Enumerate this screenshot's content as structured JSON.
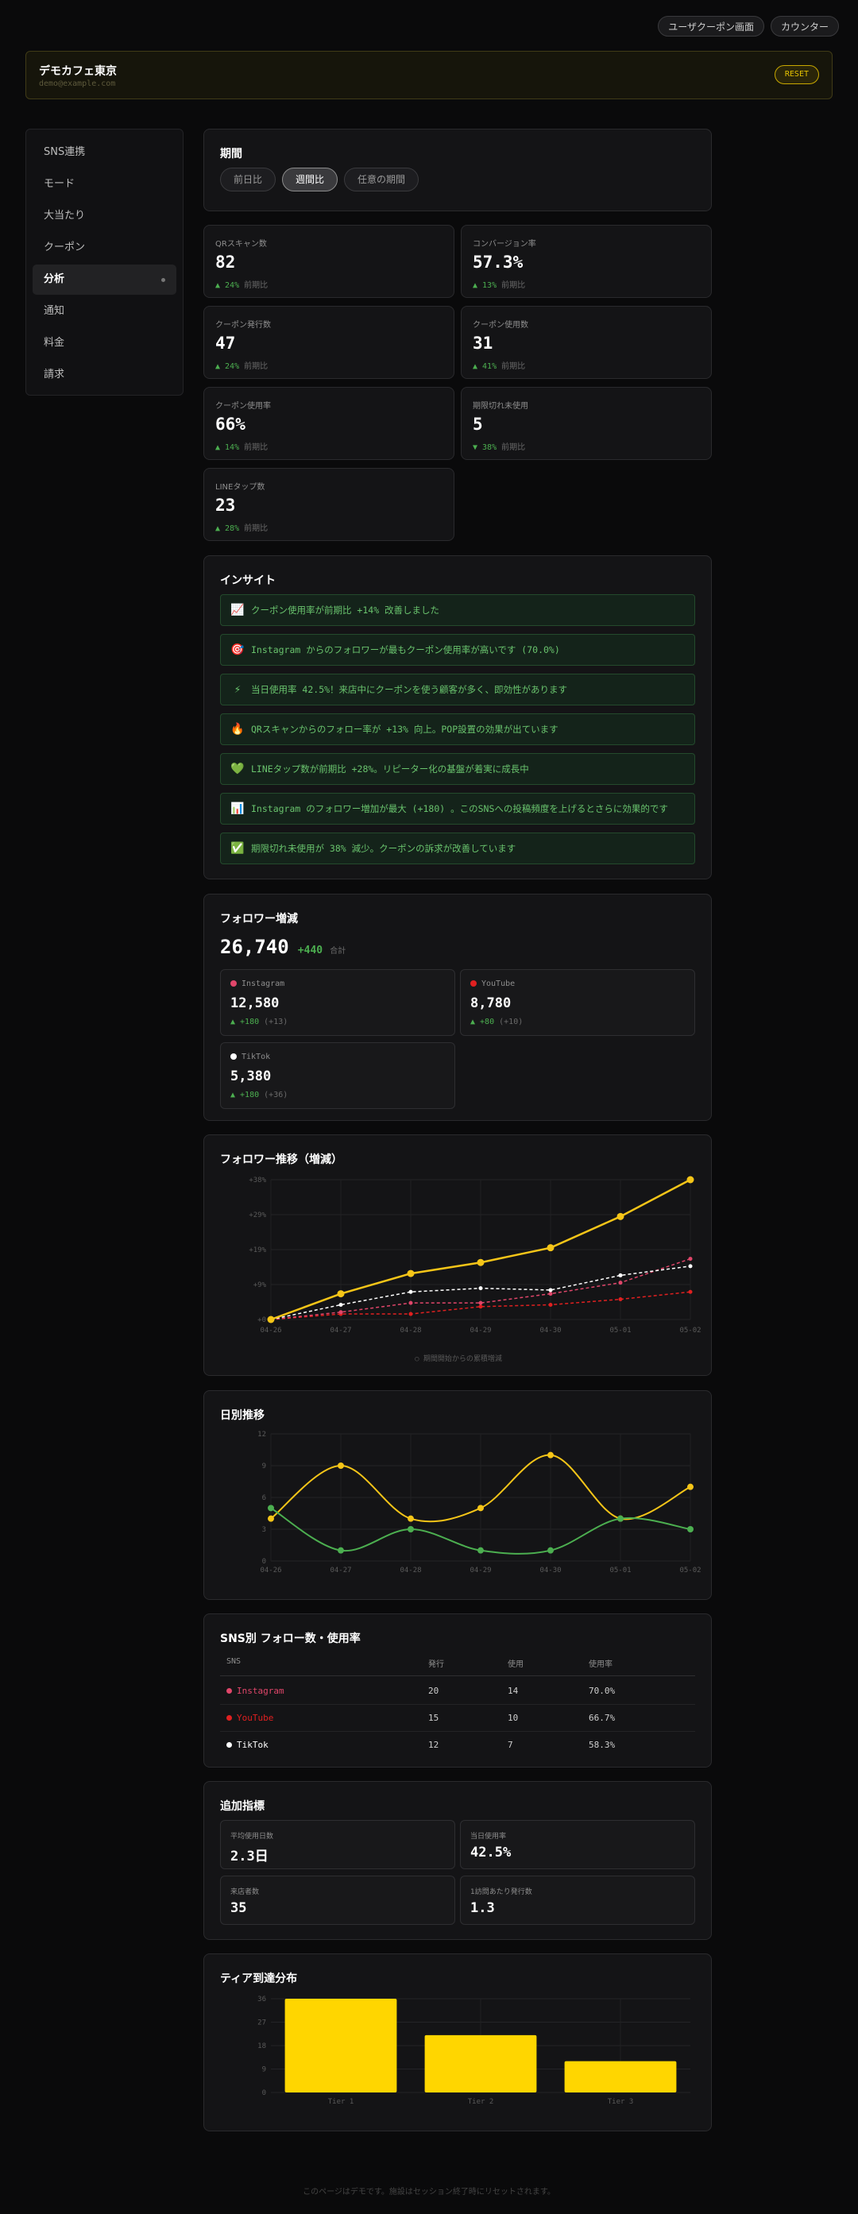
{
  "topbar": {
    "user_coupon": "ユーザクーポン画面",
    "counter": "カウンター"
  },
  "shop": {
    "name": "デモカフェ東京",
    "email": "demo@example.com",
    "reset": "RESET"
  },
  "sidebar": {
    "items": [
      {
        "label": "SNS連携"
      },
      {
        "label": "モード"
      },
      {
        "label": "大当たり"
      },
      {
        "label": "クーポン"
      },
      {
        "label": "分析",
        "active": true
      },
      {
        "label": "通知"
      },
      {
        "label": "料金"
      },
      {
        "label": "請求"
      }
    ]
  },
  "period": {
    "title": "期間",
    "options": [
      "前日比",
      "週間比",
      "任意の期間"
    ],
    "selected": "週間比"
  },
  "stats": [
    {
      "label": "QRスキャン数",
      "value": "82",
      "delta": "▲ 24%",
      "suffix": "前期比"
    },
    {
      "label": "コンバージョン率",
      "value": "57.3%",
      "delta": "▲ 13%",
      "suffix": "前期比"
    },
    {
      "label": "クーポン発行数",
      "value": "47",
      "delta": "▲ 24%",
      "suffix": "前期比"
    },
    {
      "label": "クーポン使用数",
      "value": "31",
      "delta": "▲ 41%",
      "suffix": "前期比"
    },
    {
      "label": "クーポン使用率",
      "value": "66%",
      "delta": "▲ 14%",
      "suffix": "前期比"
    },
    {
      "label": "期限切れ未使用",
      "value": "5",
      "delta": "▼ 38%",
      "suffix": "前期比"
    },
    {
      "label": "LINEタップ数",
      "value": "23",
      "delta": "▲ 28%",
      "suffix": "前期比"
    }
  ],
  "insights": {
    "title": "インサイト",
    "items": [
      {
        "icon": "📈",
        "text": "クーポン使用率が前期比 +14% 改善しました"
      },
      {
        "icon": "🎯",
        "text": "Instagram からのフォロワーが最もクーポン使用率が高いです (70.0%)"
      },
      {
        "icon": "⚡",
        "text": "当日使用率 42.5%！来店中にクーポンを使う顧客が多く、即効性があります"
      },
      {
        "icon": "🔥",
        "text": "QRスキャンからのフォロー率が +13% 向上。POP設置の効果が出ています"
      },
      {
        "icon": "💚",
        "text": "LINEタップ数が前期比 +28%。リピーター化の基盤が着実に成長中"
      },
      {
        "icon": "📊",
        "text": "Instagram のフォロワー増加が最大 (+180) 。このSNSへの投稿頻度を上げるとさらに効果的です"
      },
      {
        "icon": "✅",
        "text": "期限切れ未使用が 38% 減少。クーポンの訴求が改善しています"
      }
    ]
  },
  "followers": {
    "title": "フォロワー増減",
    "total": "26,740",
    "total_delta": "+440",
    "total_suffix": "合計",
    "platforms": [
      {
        "name": "Instagram",
        "color": "#e0466a",
        "value": "12,580",
        "delta": "▲ +180",
        "sub": "(+13)"
      },
      {
        "name": "YouTube",
        "color": "#e02020",
        "value": "8,780",
        "delta": "▲ +80",
        "sub": "(+10)"
      },
      {
        "name": "TikTok",
        "color": "#ffffff",
        "value": "5,380",
        "delta": "▲ +180",
        "sub": "(+36)"
      }
    ]
  },
  "trend_chart": {
    "title": "フォロワー推移（増減）",
    "note": "○ 期間開始からの累積増減",
    "chart_data": {
      "type": "line",
      "x": [
        "04-26",
        "04-27",
        "04-28",
        "04-29",
        "04-30",
        "05-01",
        "05-02"
      ],
      "ytick_labels": [
        "+0",
        "+9%",
        "+19%",
        "+29%",
        "+38%"
      ],
      "ylim": [
        0,
        38
      ],
      "series": [
        {
          "color": "#f5c518",
          "style": "solid",
          "values": [
            0,
            7,
            12.5,
            15.5,
            19.5,
            28,
            38
          ]
        },
        {
          "color": "#ffffff",
          "style": "dashed",
          "values": [
            0,
            4,
            7.5,
            8.5,
            8,
            12,
            14.5
          ]
        },
        {
          "color": "#e0466a",
          "style": "dashed",
          "values": [
            0,
            2,
            4.5,
            4.5,
            7,
            10,
            16.5
          ]
        },
        {
          "color": "#e02020",
          "style": "dashed",
          "values": [
            0,
            1.5,
            1.5,
            3.5,
            4,
            5.5,
            7.5
          ]
        }
      ]
    }
  },
  "daily_chart": {
    "title": "日別推移",
    "chart_data": {
      "type": "line",
      "x": [
        "04-26",
        "04-27",
        "04-28",
        "04-29",
        "04-30",
        "05-01",
        "05-02"
      ],
      "ylim": [
        0,
        12
      ],
      "yticks": [
        0,
        3,
        6,
        9,
        12
      ],
      "series": [
        {
          "color": "#f5c518",
          "values": [
            4,
            9,
            4,
            5,
            10,
            4,
            7
          ]
        },
        {
          "color": "#4caf50",
          "values": [
            5,
            1,
            3,
            1,
            1,
            4,
            3
          ]
        }
      ]
    }
  },
  "sns_table": {
    "title": "SNS別 フォロー数・使用率",
    "headers": [
      "SNS",
      "発行",
      "使用",
      "使用率"
    ],
    "rows": [
      {
        "name": "Instagram",
        "color": "#e0466a",
        "issued": "20",
        "used": "14",
        "rate": "70.0%"
      },
      {
        "name": "YouTube",
        "color": "#e02020",
        "issued": "15",
        "used": "10",
        "rate": "66.7%"
      },
      {
        "name": "TikTok",
        "color": "#ffffff",
        "issued": "12",
        "used": "7",
        "rate": "58.3%"
      }
    ]
  },
  "extra": {
    "title": "追加指標",
    "items": [
      {
        "label": "平均使用日数",
        "value": "2.3日"
      },
      {
        "label": "当日使用率",
        "value": "42.5%"
      },
      {
        "label": "来店者数",
        "value": "35"
      },
      {
        "label": "1訪問あたり発行数",
        "value": "1.3"
      }
    ]
  },
  "tier_chart": {
    "title": "ティア到達分布",
    "chart_data": {
      "type": "bar",
      "categories": [
        "Tier 1",
        "Tier 2",
        "Tier 3"
      ],
      "values": [
        36,
        22,
        12
      ],
      "yticks": [
        0,
        9,
        18,
        27,
        36
      ],
      "ylim": [
        0,
        36
      ],
      "color": "#ffd600"
    }
  },
  "footer": "このページはデモです。施設はセッション終了時にリセットされます。"
}
